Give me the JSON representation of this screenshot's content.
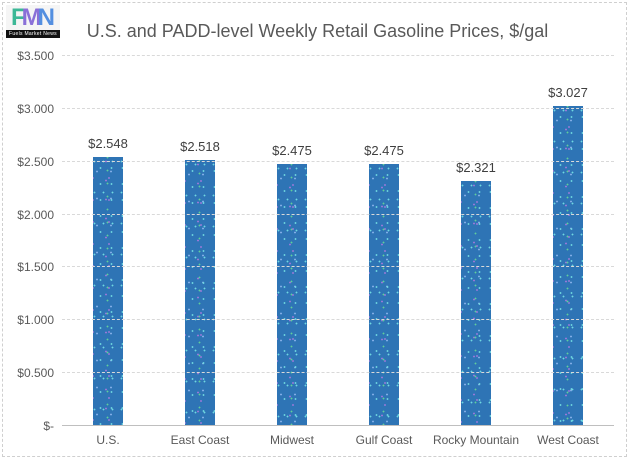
{
  "logo": {
    "letters": [
      {
        "char": "F",
        "color": "#3cb896"
      },
      {
        "char": "M",
        "color": "#8a70d8"
      },
      {
        "char": "N",
        "color": "#538fe0"
      }
    ],
    "caption": "Fuels Market News"
  },
  "chart_data": {
    "type": "bar",
    "title": "U.S. and PADD-level Weekly Retail Gasoline Prices, $/gal",
    "categories": [
      "U.S.",
      "East Coast",
      "Midwest",
      "Gulf Coast",
      "Rocky Mountain",
      "West Coast"
    ],
    "values": [
      2.548,
      2.518,
      2.475,
      2.475,
      2.321,
      3.027
    ],
    "data_labels": [
      "$2.548",
      "$2.518",
      "$2.475",
      "$2.475",
      "$2.321",
      "$3.027"
    ],
    "xlabel": "",
    "ylabel": "",
    "ylim": [
      0,
      3.5
    ],
    "yticks": [
      {
        "value": 3.5,
        "label": "$3.500"
      },
      {
        "value": 3.0,
        "label": "$3.000"
      },
      {
        "value": 2.5,
        "label": "$2.500"
      },
      {
        "value": 2.0,
        "label": "$2.000"
      },
      {
        "value": 1.5,
        "label": "$1.500"
      },
      {
        "value": 1.0,
        "label": "$1.000"
      },
      {
        "value": 0.5,
        "label": "$0.500"
      },
      {
        "value": 0.0,
        "label": "$-"
      }
    ],
    "grid": true,
    "legend": false,
    "colors": {
      "bar": "#2e74b5",
      "speckles": [
        "#6fd8e0",
        "#a379dc",
        "#5fce9b",
        "#8ab4ec"
      ],
      "gridline": "#d9d9d9",
      "axis_line": "#bfbfbf",
      "title_text": "#595959",
      "tick_text": "#595959",
      "value_text": "#3f3f3f"
    }
  }
}
